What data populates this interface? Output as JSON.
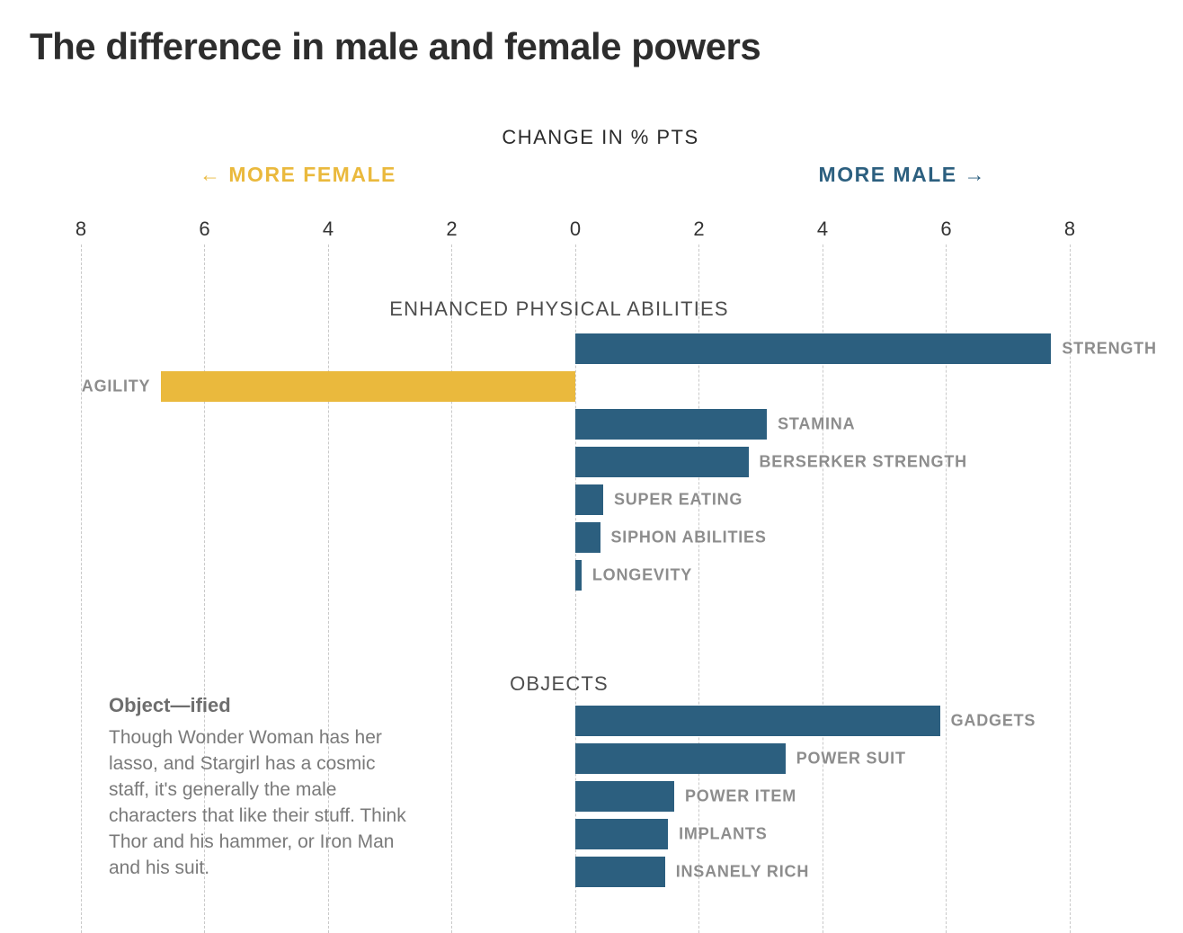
{
  "page": {
    "title": "The difference in male and female powers"
  },
  "chart_data": {
    "type": "bar",
    "title": "The difference in male and female powers",
    "axis_title": "CHANGE IN % PTS",
    "left_direction_label": "← MORE FEMALE",
    "right_direction_label": "MORE MALE →",
    "xlabel": "CHANGE IN % PTS",
    "xlim": [
      -8,
      8
    ],
    "x_ticks": [
      "8",
      "6",
      "4",
      "2",
      "0",
      "2",
      "4",
      "6",
      "8"
    ],
    "grid": "dashed-vertical",
    "colors": {
      "male": "#2c5f7f",
      "female": "#eab93d"
    },
    "groups": [
      {
        "label": "ENHANCED PHYSICAL ABILITIES",
        "bars": [
          {
            "label": "STRENGTH",
            "value": 7.7
          },
          {
            "label": "AGILITY",
            "value": -6.7
          },
          {
            "label": "STAMINA",
            "value": 3.1
          },
          {
            "label": "BERSERKER STRENGTH",
            "value": 2.8
          },
          {
            "label": "SUPER EATING",
            "value": 0.45
          },
          {
            "label": "SIPHON ABILITIES",
            "value": 0.4
          },
          {
            "label": "LONGEVITY",
            "value": 0.1
          }
        ]
      },
      {
        "label": "OBJECTS",
        "bars": [
          {
            "label": "GADGETS",
            "value": 5.9
          },
          {
            "label": "POWER SUIT",
            "value": 3.4
          },
          {
            "label": "POWER ITEM",
            "value": 1.6
          },
          {
            "label": "IMPLANTS",
            "value": 1.5
          },
          {
            "label": "INSANELY RICH",
            "value": 1.45
          }
        ]
      }
    ]
  },
  "annotation": {
    "title": "Object—ified",
    "body": "Though Wonder Woman has her lasso, and Stargirl has a cosmic staff, it's generally the male characters that like their stuff. Think Thor and his hammer, or Iron Man and his suit."
  }
}
